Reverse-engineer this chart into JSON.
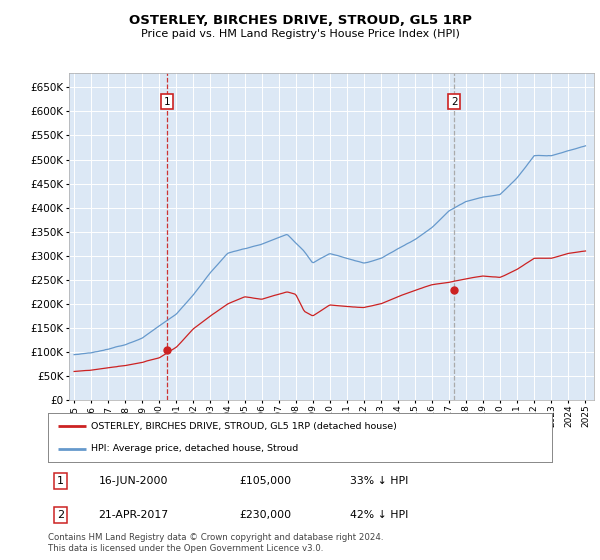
{
  "title": "OSTERLEY, BIRCHES DRIVE, STROUD, GL5 1RP",
  "subtitle": "Price paid vs. HM Land Registry's House Price Index (HPI)",
  "yticks": [
    0,
    50000,
    100000,
    150000,
    200000,
    250000,
    300000,
    350000,
    400000,
    450000,
    500000,
    550000,
    600000,
    650000
  ],
  "plot_bg": "#dce8f5",
  "hpi_color": "#6699cc",
  "price_color": "#cc2222",
  "vline1_color": "#cc3333",
  "vline1_style": "--",
  "vline2_color": "#aaaaaa",
  "vline2_style": "--",
  "marker1_x": 2000.46,
  "marker1_y": 105000,
  "marker2_x": 2017.31,
  "marker2_y": 230000,
  "legend_label1": "OSTERLEY, BIRCHES DRIVE, STROUD, GL5 1RP (detached house)",
  "legend_label2": "HPI: Average price, detached house, Stroud",
  "table_entries": [
    {
      "num": "1",
      "date": "16-JUN-2000",
      "price": "£105,000",
      "pct": "33% ↓ HPI"
    },
    {
      "num": "2",
      "date": "21-APR-2017",
      "price": "£230,000",
      "pct": "42% ↓ HPI"
    }
  ],
  "footer": "Contains HM Land Registry data © Crown copyright and database right 2024.\nThis data is licensed under the Open Government Licence v3.0.",
  "xlim_start": 1994.7,
  "xlim_end": 2025.5,
  "ylim_min": 0,
  "ylim_max": 680000
}
